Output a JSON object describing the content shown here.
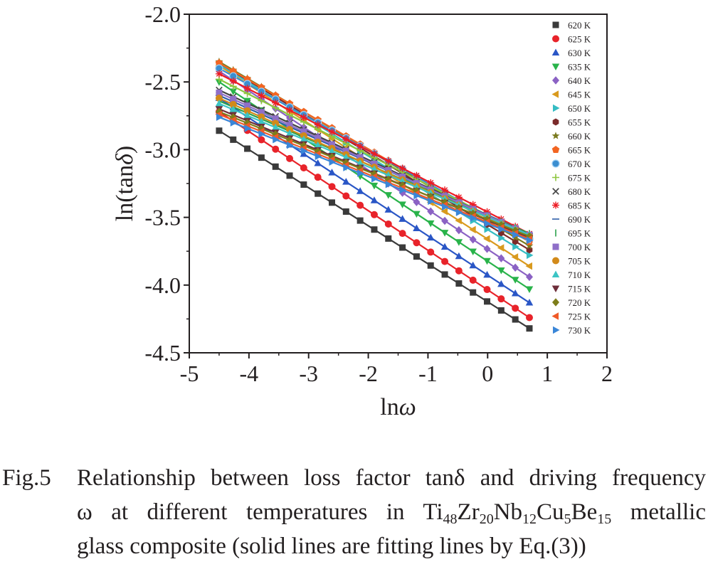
{
  "chart_data": {
    "type": "scatter",
    "xlabel": "lnω",
    "ylabel": "ln(tanδ)",
    "xlim": [
      -5,
      2
    ],
    "ylim": [
      -4.5,
      -2.0
    ],
    "xticks": [
      "-5",
      "-4",
      "-3",
      "-2",
      "-1",
      "0",
      "1",
      "2"
    ],
    "yticks": [
      "-2.0",
      "-2.5",
      "-3.0",
      "-3.5",
      "-4.0",
      "-4.5"
    ],
    "grid": false,
    "legend_position": "top-right inside",
    "x_range_data": [
      -4.5,
      0.7
    ],
    "fit_lines": "solid lines fitted by Eq.(3)",
    "series": [
      {
        "name": "620 K",
        "marker": "square",
        "color": "#3a3a3a",
        "y_start": -2.86,
        "y_end": -4.32
      },
      {
        "name": "625 K",
        "marker": "circle",
        "color": "#e8232a",
        "y_start": -2.72,
        "y_end": -4.24
      },
      {
        "name": "630 K",
        "marker": "triangle-up",
        "color": "#2a56c6",
        "y_start": -2.62,
        "y_end": -4.13
      },
      {
        "name": "635 K",
        "marker": "triangle-down",
        "color": "#29b34a",
        "y_start": -2.5,
        "y_end": -4.03
      },
      {
        "name": "640 K",
        "marker": "diamond",
        "color": "#8b62c4",
        "y_start": -2.42,
        "y_end": -3.94
      },
      {
        "name": "645 K",
        "marker": "triangle-left",
        "color": "#d99a1e",
        "y_start": -2.38,
        "y_end": -3.86
      },
      {
        "name": "650 K",
        "marker": "triangle-right",
        "color": "#35bcc3",
        "y_start": -2.37,
        "y_end": -3.78
      },
      {
        "name": "655 K",
        "marker": "hexagon",
        "color": "#7b2a2a",
        "y_start": -2.36,
        "y_end": -3.74
      },
      {
        "name": "660 K",
        "marker": "star",
        "color": "#7a7a1e",
        "y_start": -2.35,
        "y_end": -3.71
      },
      {
        "name": "665 K",
        "marker": "pentagon",
        "color": "#f26522",
        "y_start": -2.36,
        "y_end": -3.68
      },
      {
        "name": "670 K",
        "marker": "sphere",
        "color": "#3b8ed0",
        "y_start": -2.4,
        "y_end": -3.66
      },
      {
        "name": "675 K",
        "marker": "plus",
        "color": "#8dc63f",
        "y_start": -2.48,
        "y_end": -3.64
      },
      {
        "name": "680 K",
        "marker": "cross",
        "color": "#444444",
        "y_start": -2.56,
        "y_end": -3.63
      },
      {
        "name": "685 K",
        "marker": "asterisk",
        "color": "#ed1c24",
        "y_start": -2.44,
        "y_end": -3.62
      },
      {
        "name": "690 K",
        "marker": "dash",
        "color": "#2e5fa8",
        "y_start": -2.6,
        "y_end": -3.62
      },
      {
        "name": "695 K",
        "marker": "vbar",
        "color": "#2aa14b",
        "y_start": -2.64,
        "y_end": -3.62
      },
      {
        "name": "700 K",
        "marker": "square",
        "color": "#8f6fc8",
        "y_start": -2.58,
        "y_end": -3.63
      },
      {
        "name": "705 K",
        "marker": "circle",
        "color": "#d28a1a",
        "y_start": -2.62,
        "y_end": -3.64
      },
      {
        "name": "710 K",
        "marker": "triangle-up",
        "color": "#3cc4c4",
        "y_start": -2.66,
        "y_end": -3.63
      },
      {
        "name": "715 K",
        "marker": "triangle-down",
        "color": "#6e2e3a",
        "y_start": -2.7,
        "y_end": -3.65
      },
      {
        "name": "720 K",
        "marker": "diamond",
        "color": "#7d7d1a",
        "y_start": -2.72,
        "y_end": -3.64
      },
      {
        "name": "725 K",
        "marker": "triangle-left",
        "color": "#f05a28",
        "y_start": -2.74,
        "y_end": -3.66
      },
      {
        "name": "730 K",
        "marker": "triangle-right",
        "color": "#3a86d8",
        "y_start": -2.76,
        "y_end": -3.67
      }
    ]
  },
  "caption": {
    "label": "Fig.5",
    "line1": "Relationship between loss factor tanδ and driving frequency",
    "line2_pre": "ω at different temperatures in Ti",
    "s1": "48",
    "z": "Zr",
    "s2": "20",
    "nb": "Nb",
    "s3": "12",
    "cu": "Cu",
    "s4": "5",
    "be": "Be",
    "s5": "15",
    "line2_post": " metallic",
    "line3": "glass composite (solid lines are fitting lines by Eq.(3))"
  }
}
